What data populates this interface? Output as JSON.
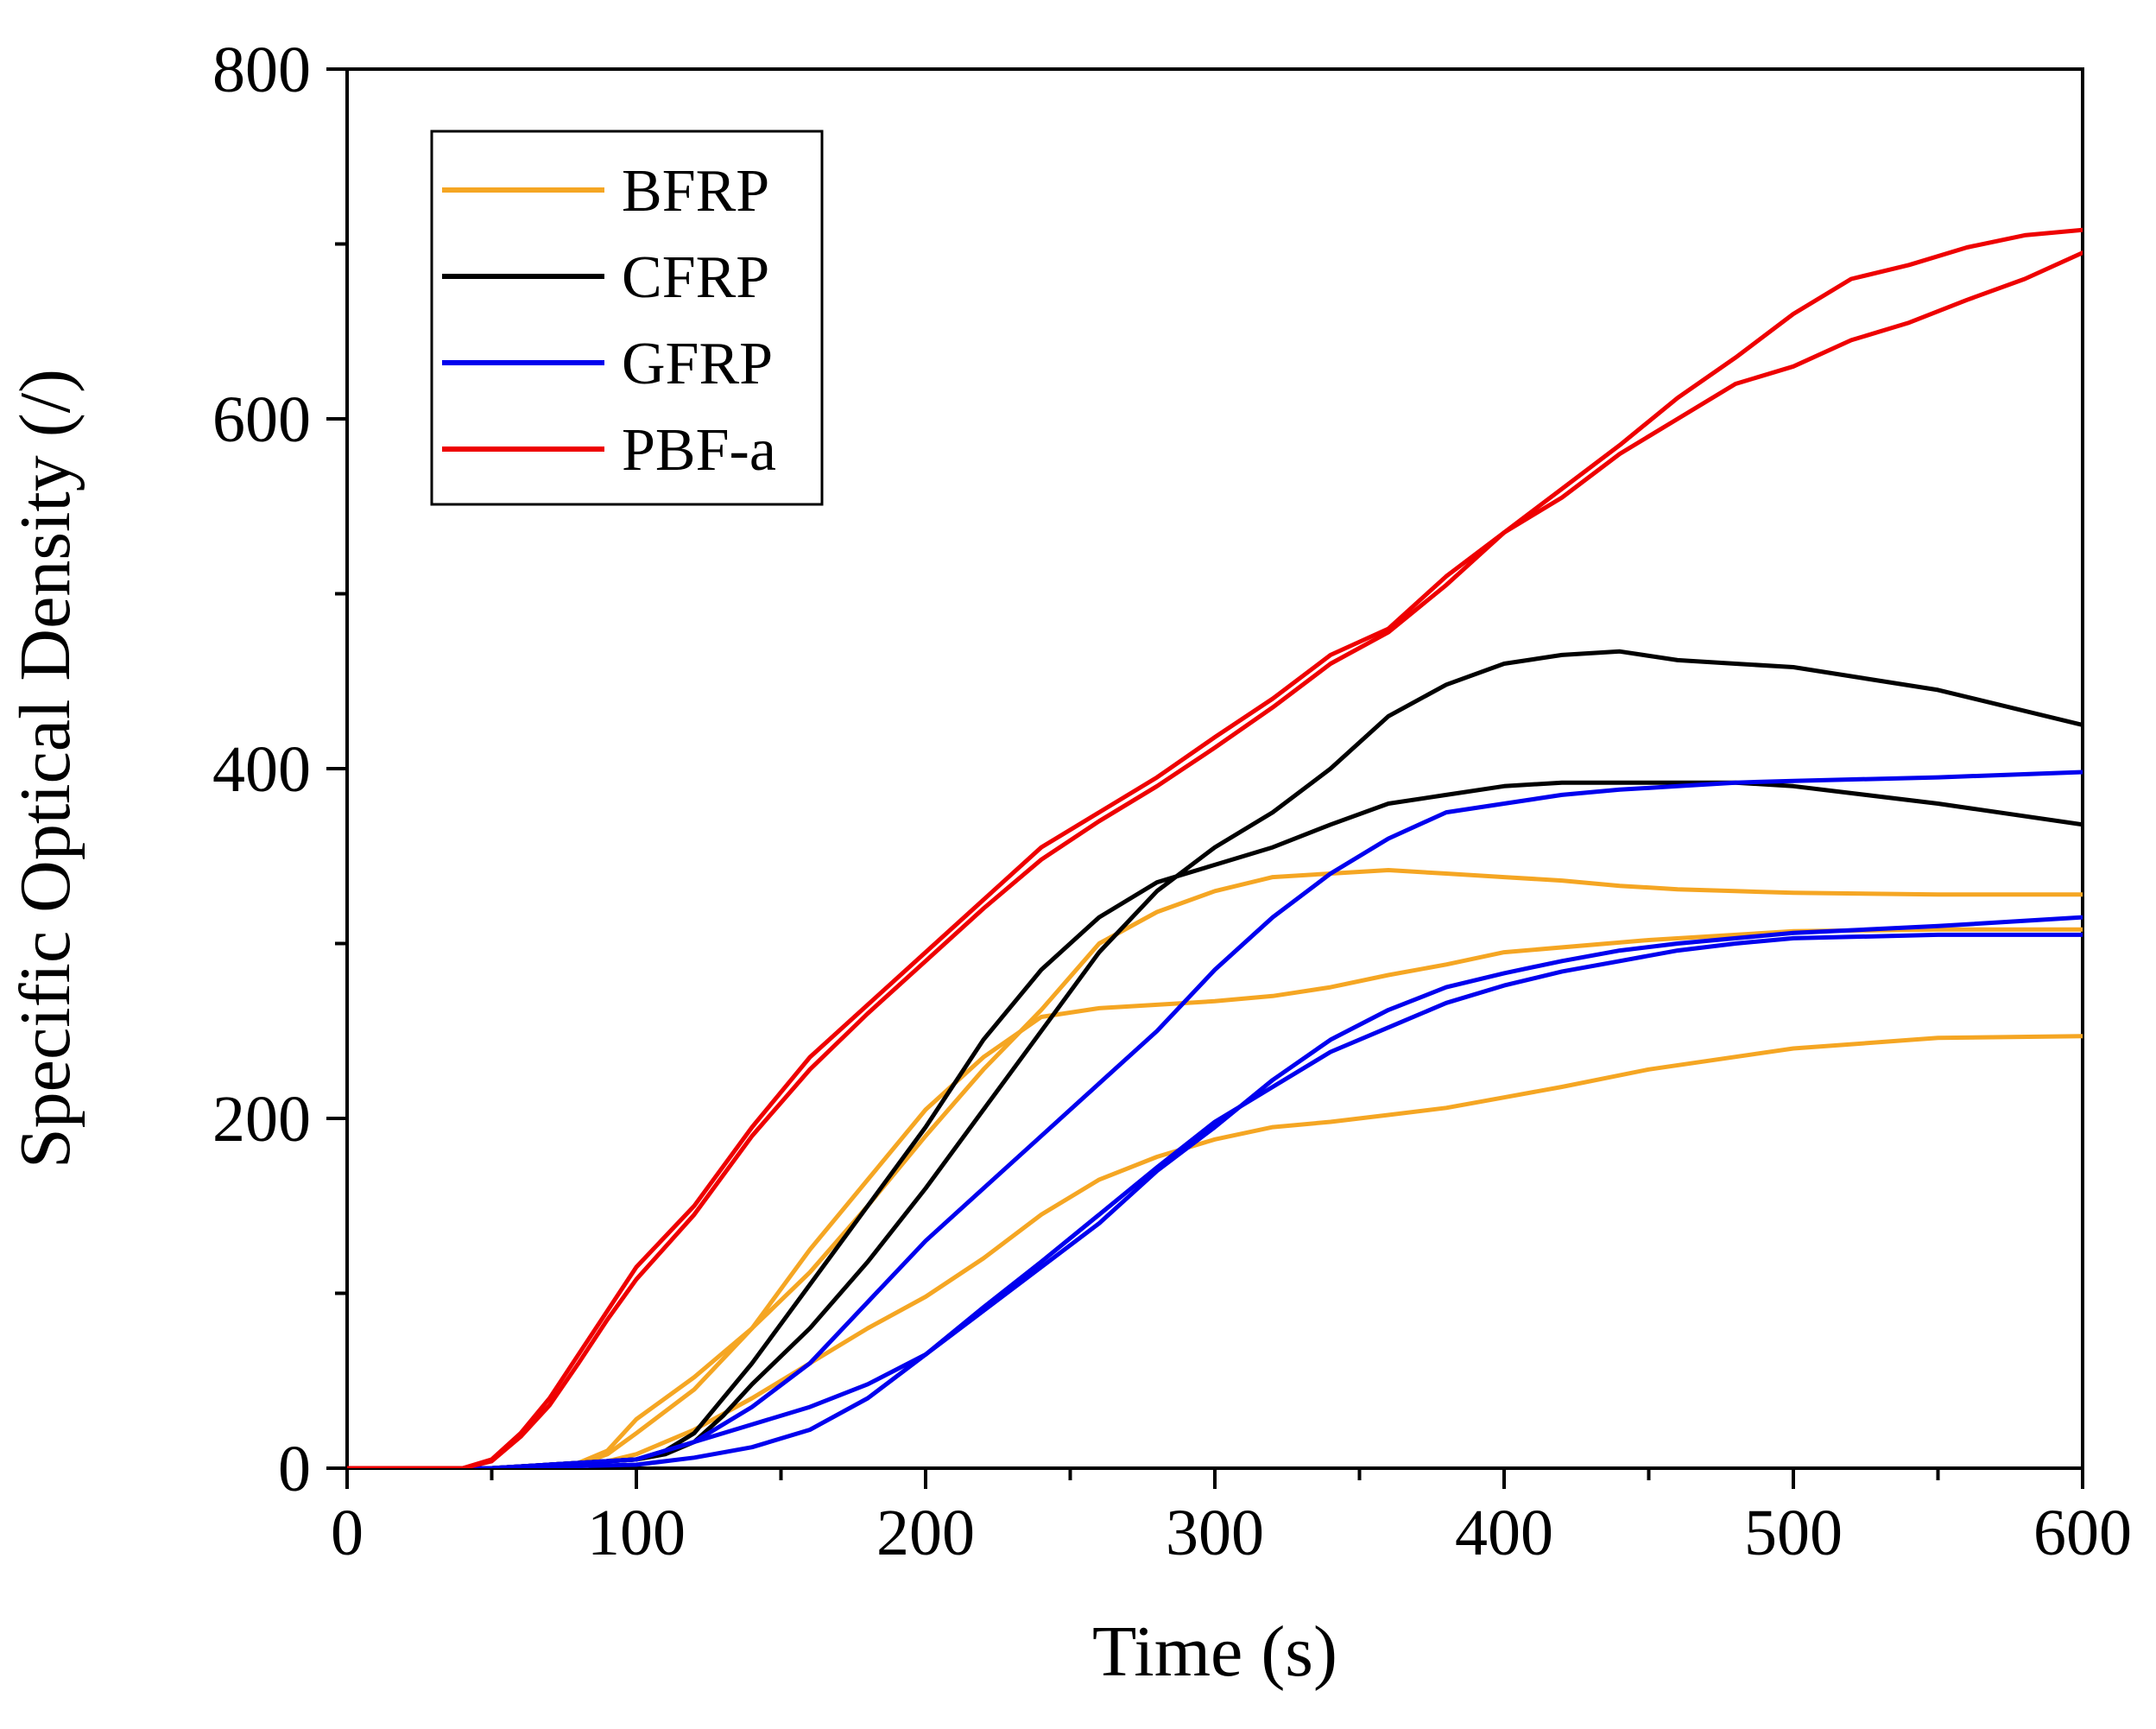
{
  "chart_data": {
    "type": "line",
    "title": "",
    "xlabel": "Time (s)",
    "ylabel": "Specific Optical Density (/)",
    "xlim": [
      0,
      600
    ],
    "ylim": [
      0,
      800
    ],
    "xticks": [
      0,
      100,
      200,
      300,
      400,
      500,
      600
    ],
    "yticks": [
      0,
      200,
      400,
      600,
      800
    ],
    "grid": false,
    "legend_position": "top-left",
    "legend": [
      {
        "name": "BFRP",
        "color": "#f5a623"
      },
      {
        "name": "CFRP",
        "color": "#000000"
      },
      {
        "name": "GFRP",
        "color": "#0000ee"
      },
      {
        "name": "PBF-a",
        "color": "#ee0000"
      }
    ],
    "series": [
      {
        "name": "BFRP",
        "color": "#f5a623",
        "x": [
          0,
          50,
          80,
          90,
          100,
          120,
          140,
          160,
          180,
          200,
          220,
          240,
          260,
          280,
          300,
          320,
          340,
          360,
          380,
          400,
          450,
          500,
          550,
          600
        ],
        "y": [
          0,
          0,
          2,
          8,
          20,
          45,
          80,
          125,
          165,
          205,
          235,
          258,
          263,
          265,
          267,
          270,
          275,
          282,
          288,
          295,
          302,
          307,
          308,
          308
        ]
      },
      {
        "name": "BFRP",
        "color": "#f5a623",
        "x": [
          0,
          50,
          80,
          90,
          100,
          120,
          140,
          160,
          180,
          200,
          220,
          240,
          260,
          280,
          300,
          320,
          340,
          360,
          380,
          400,
          420,
          440,
          460,
          480,
          500,
          550,
          600
        ],
        "y": [
          0,
          0,
          3,
          10,
          28,
          52,
          80,
          112,
          150,
          190,
          228,
          262,
          300,
          318,
          330,
          338,
          340,
          342,
          340,
          338,
          336,
          333,
          331,
          330,
          329,
          328,
          328
        ]
      },
      {
        "name": "BFRP",
        "color": "#f5a623",
        "x": [
          0,
          50,
          80,
          100,
          120,
          140,
          160,
          180,
          200,
          220,
          240,
          260,
          280,
          300,
          320,
          340,
          360,
          380,
          400,
          420,
          450,
          500,
          550,
          600
        ],
        "y": [
          0,
          0,
          0,
          8,
          22,
          40,
          60,
          80,
          98,
          120,
          145,
          165,
          178,
          188,
          195,
          198,
          202,
          206,
          212,
          218,
          228,
          240,
          246,
          247
        ]
      },
      {
        "name": "CFRP",
        "color": "#000000",
        "x": [
          0,
          50,
          100,
          110,
          120,
          130,
          140,
          160,
          180,
          200,
          220,
          240,
          260,
          280,
          300,
          320,
          340,
          360,
          380,
          400,
          420,
          440,
          460,
          480,
          500,
          550,
          600
        ],
        "y": [
          0,
          0,
          5,
          10,
          20,
          40,
          60,
          105,
          150,
          195,
          245,
          285,
          315,
          335,
          345,
          355,
          368,
          380,
          385,
          390,
          392,
          392,
          392,
          392,
          390,
          380,
          368
        ]
      },
      {
        "name": "CFRP",
        "color": "#000000",
        "x": [
          0,
          50,
          100,
          110,
          120,
          130,
          140,
          160,
          180,
          200,
          220,
          240,
          260,
          280,
          300,
          320,
          340,
          360,
          380,
          400,
          420,
          440,
          460,
          480,
          500,
          550,
          600
        ],
        "y": [
          0,
          0,
          5,
          8,
          15,
          30,
          48,
          80,
          118,
          160,
          205,
          250,
          295,
          330,
          355,
          375,
          400,
          430,
          448,
          460,
          465,
          467,
          462,
          460,
          458,
          445,
          425
        ]
      },
      {
        "name": "GFRP",
        "color": "#0000ee",
        "x": [
          0,
          50,
          100,
          120,
          140,
          160,
          180,
          200,
          220,
          240,
          260,
          280,
          300,
          320,
          340,
          360,
          380,
          400,
          420,
          440,
          460,
          480,
          500,
          550,
          600
        ],
        "y": [
          0,
          0,
          5,
          15,
          35,
          60,
          95,
          130,
          160,
          190,
          220,
          250,
          285,
          315,
          340,
          360,
          375,
          380,
          385,
          388,
          390,
          392,
          393,
          395,
          398
        ]
      },
      {
        "name": "GFRP",
        "color": "#0000ee",
        "x": [
          0,
          50,
          100,
          120,
          140,
          160,
          180,
          200,
          220,
          240,
          260,
          280,
          300,
          320,
          340,
          360,
          380,
          400,
          420,
          440,
          460,
          480,
          500,
          550,
          600
        ],
        "y": [
          0,
          0,
          5,
          15,
          25,
          35,
          48,
          65,
          90,
          115,
          140,
          170,
          195,
          222,
          245,
          262,
          275,
          283,
          290,
          296,
          300,
          303,
          306,
          310,
          315
        ]
      },
      {
        "name": "GFRP",
        "color": "#0000ee",
        "x": [
          0,
          50,
          100,
          120,
          140,
          160,
          180,
          200,
          220,
          240,
          260,
          280,
          300,
          320,
          340,
          360,
          380,
          400,
          420,
          440,
          460,
          480,
          500,
          550,
          600
        ],
        "y": [
          0,
          0,
          2,
          6,
          12,
          22,
          40,
          65,
          92,
          118,
          145,
          172,
          198,
          218,
          238,
          252,
          266,
          276,
          284,
          290,
          296,
          300,
          303,
          305,
          305
        ]
      },
      {
        "name": "PBF-a",
        "color": "#ee0000",
        "x": [
          0,
          40,
          50,
          60,
          70,
          80,
          90,
          100,
          120,
          140,
          160,
          180,
          200,
          220,
          240,
          260,
          280,
          300,
          320,
          340,
          360,
          380,
          400,
          420,
          440,
          460,
          480,
          500,
          520,
          540,
          560,
          580,
          600
        ],
        "y": [
          0,
          0,
          5,
          20,
          40,
          65,
          90,
          115,
          150,
          195,
          235,
          265,
          295,
          325,
          355,
          375,
          395,
          418,
          440,
          465,
          480,
          510,
          535,
          560,
          585,
          612,
          635,
          660,
          680,
          688,
          698,
          705,
          708
        ]
      },
      {
        "name": "PBF-a",
        "color": "#ee0000",
        "x": [
          0,
          40,
          50,
          60,
          70,
          80,
          90,
          100,
          120,
          140,
          160,
          180,
          200,
          220,
          240,
          260,
          280,
          300,
          320,
          340,
          360,
          380,
          400,
          420,
          440,
          460,
          480,
          500,
          520,
          540,
          560,
          580,
          600
        ],
        "y": [
          0,
          0,
          4,
          18,
          36,
          60,
          85,
          108,
          145,
          190,
          228,
          260,
          290,
          320,
          348,
          370,
          390,
          412,
          435,
          460,
          478,
          505,
          535,
          555,
          580,
          600,
          620,
          630,
          645,
          655,
          668,
          680,
          695
        ]
      }
    ]
  }
}
